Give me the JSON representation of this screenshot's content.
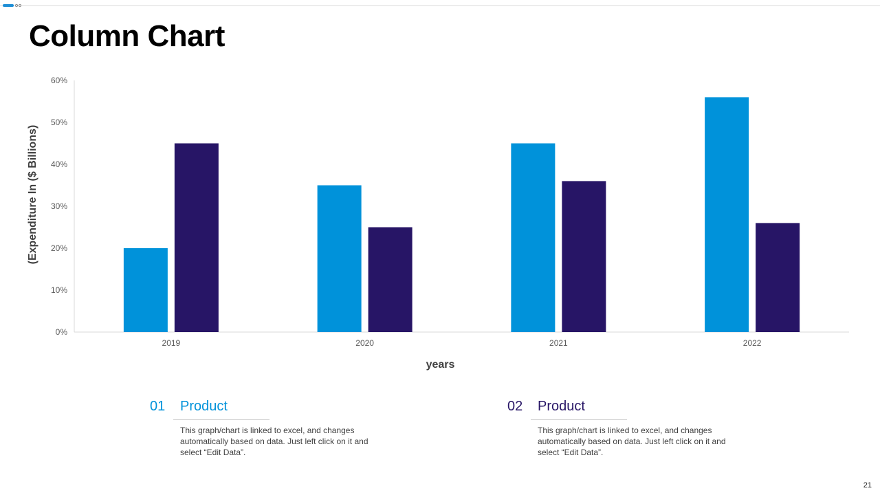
{
  "slide": {
    "title": "Column Chart",
    "page_number": "21"
  },
  "colors": {
    "series1": "#0092da",
    "series2": "#271566",
    "axis": "#d9d9d9",
    "tick_text": "#595959",
    "label_text": "#404040"
  },
  "chart_data": {
    "type": "bar",
    "title": "",
    "categories": [
      "2019",
      "2020",
      "2021",
      "2022"
    ],
    "series": [
      {
        "name": "Product 01",
        "values": [
          20,
          35,
          45,
          56
        ]
      },
      {
        "name": "Product 02",
        "values": [
          45,
          25,
          36,
          26
        ]
      }
    ],
    "xlabel": "years",
    "ylabel": "(Expenditure In ($ Billions)",
    "ylim": [
      0,
      60
    ],
    "yticks": [
      "0%",
      "10%",
      "20%",
      "30%",
      "40%",
      "50%",
      "60%"
    ],
    "grid": false,
    "legend": "none"
  },
  "products": [
    {
      "number": "01",
      "title": "Product",
      "description": "This graph/chart is linked to excel, and changes automatically based on data. Just left click on it and select “Edit Data”."
    },
    {
      "number": "02",
      "title": "Product",
      "description": "This graph/chart is linked to excel, and changes automatically based on data. Just left click on it and select “Edit Data”."
    }
  ]
}
